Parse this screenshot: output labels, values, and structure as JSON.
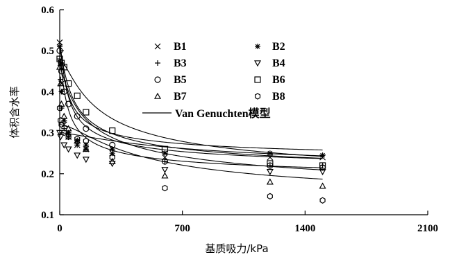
{
  "chart_data": {
    "type": "scatter",
    "xlabel": "基质吸力/kPa",
    "ylabel": "体积含水率",
    "xlim": [
      0,
      2100
    ],
    "ylim": [
      0.1,
      0.6
    ],
    "xticks": [
      "0",
      "700",
      "1400",
      "2100"
    ],
    "yticks": [
      "0.1",
      "0.2",
      "0.3",
      "0.4",
      "0.5",
      "0.6"
    ],
    "grid": false,
    "legend_position": "top-center",
    "model_label": "Van Genuchten模型",
    "series": [
      {
        "name": "B1",
        "marker": "x",
        "points": [
          [
            0,
            0.52
          ],
          [
            5,
            0.47
          ],
          [
            10,
            0.42
          ],
          [
            25,
            0.32
          ],
          [
            50,
            0.29
          ],
          [
            100,
            0.27
          ],
          [
            150,
            0.26
          ],
          [
            300,
            0.25
          ],
          [
            600,
            0.24
          ],
          [
            1200,
            0.24
          ],
          [
            1500,
            0.24
          ]
        ],
        "fit": {
          "ts": 0.52,
          "tr": 0.2,
          "a": 0.05,
          "n": 1.5
        }
      },
      {
        "name": "B2",
        "marker": "star",
        "points": [
          [
            0,
            0.51
          ],
          [
            5,
            0.47
          ],
          [
            10,
            0.4
          ],
          [
            25,
            0.33
          ],
          [
            50,
            0.3
          ],
          [
            100,
            0.28
          ],
          [
            150,
            0.27
          ],
          [
            300,
            0.26
          ],
          [
            600,
            0.25
          ],
          [
            1200,
            0.25
          ],
          [
            1500,
            0.245
          ]
        ],
        "fit": {
          "ts": 0.51,
          "tr": 0.225,
          "a": 0.05,
          "n": 1.5
        }
      },
      {
        "name": "B3",
        "marker": "plus",
        "points": [
          [
            0,
            0.48
          ],
          [
            5,
            0.43
          ],
          [
            10,
            0.36
          ],
          [
            25,
            0.31
          ],
          [
            50,
            0.29
          ],
          [
            100,
            0.27
          ],
          [
            150,
            0.26
          ],
          [
            300,
            0.25
          ],
          [
            600,
            0.23
          ],
          [
            1200,
            0.22
          ],
          [
            1500,
            0.22
          ]
        ],
        "fit": {
          "ts": 0.48,
          "tr": 0.18,
          "a": 0.05,
          "n": 1.5
        }
      },
      {
        "name": "B4",
        "marker": "triangle-down",
        "points": [
          [
            0,
            0.3
          ],
          [
            5,
            0.29
          ],
          [
            25,
            0.27
          ],
          [
            50,
            0.26
          ],
          [
            100,
            0.245
          ],
          [
            150,
            0.235
          ],
          [
            300,
            0.225
          ],
          [
            600,
            0.21
          ],
          [
            1200,
            0.205
          ],
          [
            1500,
            0.205
          ]
        ],
        "fit": {
          "ts": 0.3,
          "tr": 0.18,
          "a": 0.003,
          "n": 1.4
        }
      },
      {
        "name": "B5",
        "marker": "circle",
        "points": [
          [
            0,
            0.5
          ],
          [
            10,
            0.45
          ],
          [
            25,
            0.4
          ],
          [
            50,
            0.37
          ],
          [
            100,
            0.34
          ],
          [
            150,
            0.31
          ],
          [
            300,
            0.27
          ],
          [
            600,
            0.23
          ],
          [
            1200,
            0.22
          ],
          [
            1500,
            0.215
          ]
        ],
        "fit": {
          "ts": 0.5,
          "tr": 0.18,
          "a": 0.03,
          "n": 1.45
        }
      },
      {
        "name": "B6",
        "marker": "square",
        "points": [
          [
            0,
            0.48
          ],
          [
            10,
            0.47
          ],
          [
            25,
            0.46
          ],
          [
            50,
            0.42
          ],
          [
            100,
            0.39
          ],
          [
            150,
            0.35
          ],
          [
            300,
            0.305
          ],
          [
            600,
            0.26
          ],
          [
            1200,
            0.225
          ],
          [
            1500,
            0.22
          ]
        ],
        "fit": {
          "ts": 0.48,
          "tr": 0.16,
          "a": 0.01,
          "n": 1.5
        }
      },
      {
        "name": "B7",
        "marker": "triangle-up",
        "points": [
          [
            0,
            0.46
          ],
          [
            5,
            0.42
          ],
          [
            10,
            0.37
          ],
          [
            25,
            0.34
          ],
          [
            50,
            0.31
          ],
          [
            100,
            0.28
          ],
          [
            150,
            0.26
          ],
          [
            300,
            0.23
          ],
          [
            600,
            0.195
          ],
          [
            1200,
            0.18
          ],
          [
            1500,
            0.17
          ]
        ],
        "fit": {
          "ts": 0.46,
          "tr": 0.1,
          "a": 0.02,
          "n": 1.35
        }
      },
      {
        "name": "B8",
        "marker": "hexagon",
        "points": [
          [
            0,
            0.36
          ],
          [
            5,
            0.33
          ],
          [
            10,
            0.32
          ],
          [
            25,
            0.3
          ],
          [
            50,
            0.29
          ],
          [
            100,
            0.285
          ],
          [
            150,
            0.28
          ],
          [
            300,
            0.24
          ],
          [
            600,
            0.165
          ],
          [
            1200,
            0.145
          ],
          [
            1500,
            0.135
          ]
        ],
        "fit": {
          "ts": 0.32,
          "tr": 0.12,
          "a": 0.004,
          "n": 1.6
        }
      }
    ]
  }
}
